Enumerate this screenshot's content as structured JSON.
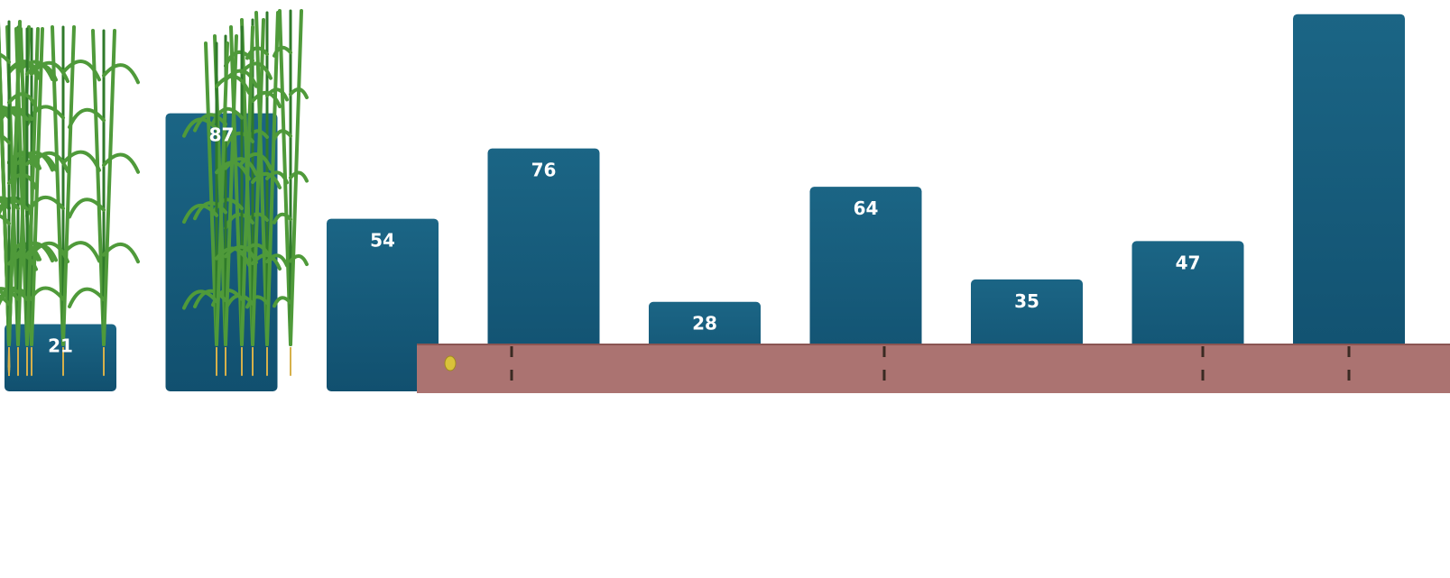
{
  "chart_data": {
    "type": "bar",
    "categories": [
      "",
      "",
      "",
      "",
      "",
      "",
      "",
      "",
      ""
    ],
    "values": [
      21,
      87,
      54,
      76,
      28,
      64,
      35,
      47,
      118
    ],
    "data_labels": [
      "21",
      "87",
      "54",
      "76",
      "28",
      "64",
      "35",
      "47",
      ""
    ],
    "title": "",
    "xlabel": "",
    "ylabel": "",
    "ylim": [
      0,
      118
    ],
    "grid": false,
    "legend": "none"
  },
  "colors": {
    "bar_top": "#1b6585",
    "bar_bottom": "#11506f",
    "soil": "#ab7371",
    "soil_line": "#8b5552",
    "leaf": "#4f9a3a",
    "root": "#d6b04a",
    "seed": "#d9c23a",
    "mature_stalk": "#e6cf57"
  },
  "decoration": {
    "illustration": "wheat-growth-stages-soil-strip",
    "icon": "plant-icon"
  }
}
